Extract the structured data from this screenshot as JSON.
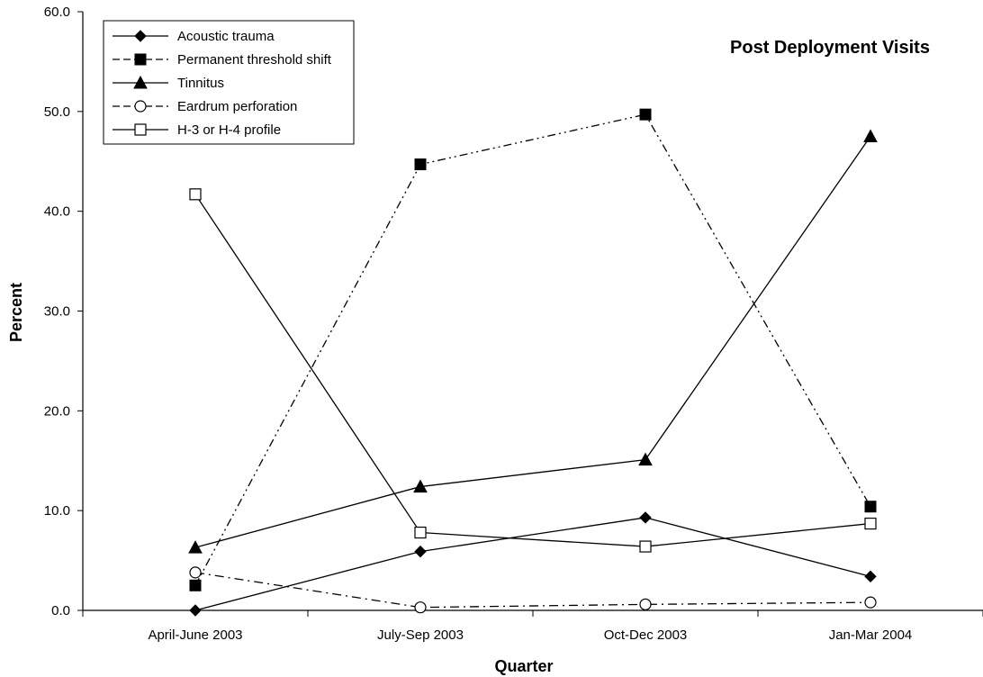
{
  "chart_data": {
    "type": "line",
    "title": "Post Deployment Visits",
    "xlabel": "Quarter",
    "ylabel": "Percent",
    "categories": [
      "April-June 2003",
      "July-Sep 2003",
      "Oct-Dec 2003",
      "Jan-Mar 2004"
    ],
    "ylim": [
      0,
      60
    ],
    "yticks": [
      "0.0",
      "10.0",
      "20.0",
      "30.0",
      "40.0",
      "50.0",
      "60.0"
    ],
    "grid": false,
    "legend_position": "top-left",
    "series": [
      {
        "name": "Acoustic trauma",
        "values": [
          0.0,
          5.9,
          9.3,
          3.4
        ],
        "marker": "diamond-filled",
        "line": "solid"
      },
      {
        "name": "Permanent threshold shift",
        "values": [
          2.5,
          44.7,
          49.7,
          10.4
        ],
        "marker": "square-filled",
        "line": "dash-dot-dot"
      },
      {
        "name": "Tinnitus",
        "values": [
          6.3,
          12.4,
          15.1,
          47.5
        ],
        "marker": "triangle-filled",
        "line": "solid"
      },
      {
        "name": "Eardrum perforation",
        "values": [
          3.8,
          0.3,
          0.6,
          0.8
        ],
        "marker": "circle-open",
        "line": "dash-dot"
      },
      {
        "name": "H-3 or H-4 profile",
        "values": [
          41.7,
          7.8,
          6.4,
          8.7
        ],
        "marker": "square-open",
        "line": "solid"
      }
    ]
  }
}
